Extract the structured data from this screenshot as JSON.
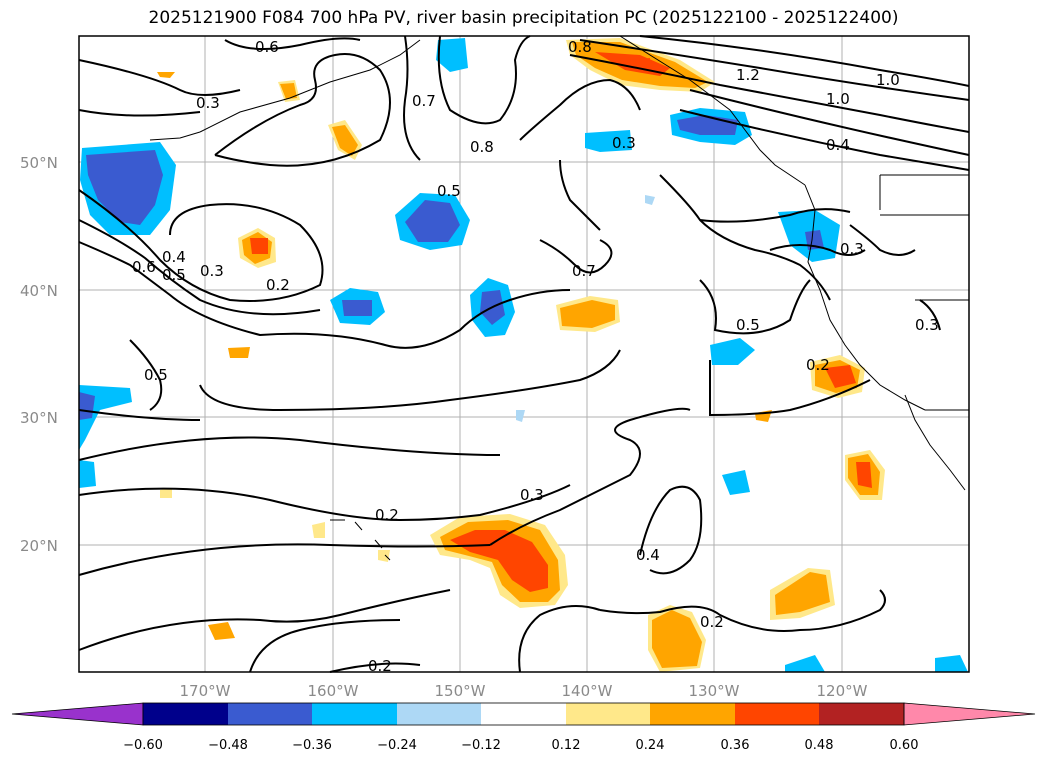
{
  "title": "2025121900 F084 700 hPa PV, river basin precipitation PC (2025122100 - 2025122400)",
  "lat_ticks": [
    "50°N",
    "40°N",
    "30°N",
    "20°N"
  ],
  "lon_ticks": [
    "170°W",
    "160°W",
    "150°W",
    "140°W",
    "130°W",
    "120°W"
  ],
  "contour_labels": [
    "0.6",
    "0.3",
    "0.7",
    "0.8",
    "0.8",
    "1.2",
    "1.0",
    "1.0",
    "0.4",
    "0.3",
    "0.5",
    "0.4",
    "0.5",
    "0.6",
    "0.3",
    "0.2",
    "0.7",
    "0.5",
    "0.3",
    "0.5",
    "0.2",
    "0.3",
    "0.3",
    "0.2",
    "0.4",
    "0.2",
    "0.2"
  ],
  "colorbar": {
    "ticks": [
      "−0.60",
      "−0.48",
      "−0.36",
      "−0.24",
      "−0.12",
      "0.12",
      "0.24",
      "0.36",
      "0.48",
      "0.60"
    ],
    "colors": [
      "#9932cc",
      "#00008b",
      "#3a5bd0",
      "#00bfff",
      "#add8f5",
      "#ffffff",
      "#ffe88a",
      "#ffa500",
      "#ff4500",
      "#b22222",
      "#ff88aa"
    ]
  }
}
